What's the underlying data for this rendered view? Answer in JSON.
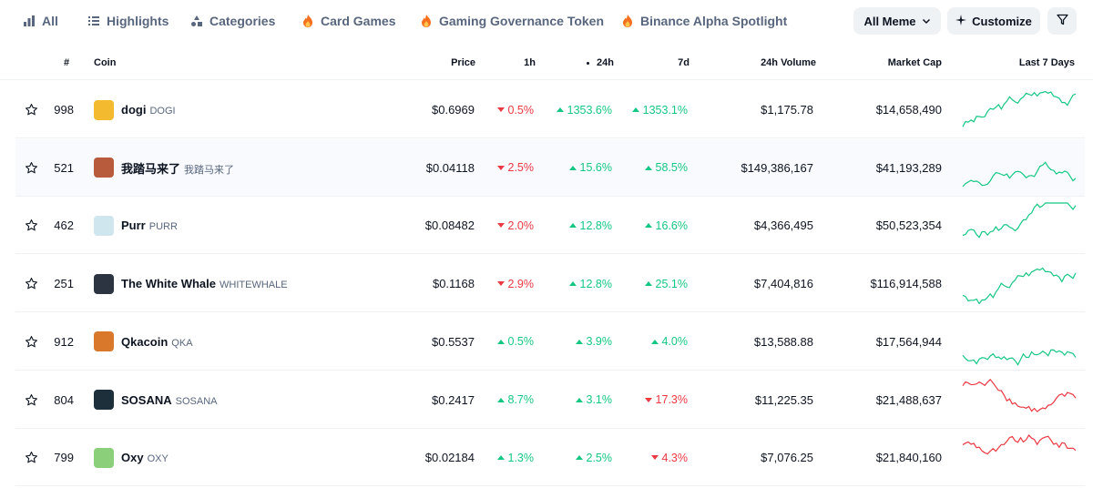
{
  "nav": {
    "items": [
      {
        "label": "All",
        "icon": "bar-chart-icon"
      },
      {
        "label": "Highlights",
        "icon": "list-icon"
      },
      {
        "label": "Categories",
        "icon": "categories-icon"
      },
      {
        "label": "Card Games",
        "icon": "fire-icon"
      },
      {
        "label": "Gaming Governance Token",
        "icon": "fire-icon"
      },
      {
        "label": "Binance Alpha Spotlight",
        "icon": "fire-icon"
      }
    ],
    "all_meme_label": "All Meme",
    "customize_label": "Customize"
  },
  "table": {
    "headers": {
      "rank": "#",
      "coin": "Coin",
      "price": "Price",
      "h1": "1h",
      "h24": "24h",
      "d7": "7d",
      "volume": "24h Volume",
      "market_cap": "Market Cap",
      "spark": "Last 7 Days"
    },
    "rows": [
      {
        "rank": "998",
        "name": "dogi",
        "symbol": "DOGI",
        "price": "$0.6969",
        "h1": "0.5%",
        "h1_dir": "down",
        "h24": "1353.6%",
        "h24_dir": "up",
        "d7": "1353.1%",
        "d7_dir": "up",
        "volume": "$1,175.78",
        "market_cap": "$14,658,490",
        "spark_dir": "up",
        "logo_color": "#f3ba2f"
      },
      {
        "rank": "521",
        "name": "我踏马来了",
        "symbol": "我踏马来了",
        "price": "$0.04118",
        "h1": "2.5%",
        "h1_dir": "down",
        "h24": "15.6%",
        "h24_dir": "up",
        "d7": "58.5%",
        "d7_dir": "up",
        "volume": "$149,386,167",
        "market_cap": "$41,193,289",
        "spark_dir": "up",
        "logo_color": "#b85a3c"
      },
      {
        "rank": "462",
        "name": "Purr",
        "symbol": "PURR",
        "price": "$0.08482",
        "h1": "2.0%",
        "h1_dir": "down",
        "h24": "12.8%",
        "h24_dir": "up",
        "d7": "16.6%",
        "d7_dir": "up",
        "volume": "$4,366,495",
        "market_cap": "$50,523,354",
        "spark_dir": "up",
        "logo_color": "#cfe6ef"
      },
      {
        "rank": "251",
        "name": "The White Whale",
        "symbol": "WHITEWHALE",
        "price": "$0.1168",
        "h1": "2.9%",
        "h1_dir": "down",
        "h24": "12.8%",
        "h24_dir": "up",
        "d7": "25.1%",
        "d7_dir": "up",
        "volume": "$7,404,816",
        "market_cap": "$116,914,588",
        "spark_dir": "up",
        "logo_color": "#2b3440"
      },
      {
        "rank": "912",
        "name": "Qkacoin",
        "symbol": "QKA",
        "price": "$0.5537",
        "h1": "0.5%",
        "h1_dir": "up",
        "h24": "3.9%",
        "h24_dir": "up",
        "d7": "4.0%",
        "d7_dir": "up",
        "volume": "$13,588.88",
        "market_cap": "$17,564,944",
        "spark_dir": "up",
        "logo_color": "#d9772b"
      },
      {
        "rank": "804",
        "name": "SOSANA",
        "symbol": "SOSANA",
        "price": "$0.2417",
        "h1": "8.7%",
        "h1_dir": "up",
        "h24": "3.1%",
        "h24_dir": "up",
        "d7": "17.3%",
        "d7_dir": "down",
        "volume": "$11,225.35",
        "market_cap": "$21,488,637",
        "spark_dir": "down",
        "logo_color": "#1d2f3a"
      },
      {
        "rank": "799",
        "name": "Oxy",
        "symbol": "OXY",
        "price": "$0.02184",
        "h1": "1.3%",
        "h1_dir": "up",
        "h24": "2.5%",
        "h24_dir": "up",
        "d7": "4.3%",
        "d7_dir": "down",
        "volume": "$7,076.25",
        "market_cap": "$21,840,160",
        "spark_dir": "down",
        "logo_color": "#8ccf7a"
      }
    ]
  },
  "colors": {
    "up": "#16c784",
    "down": "#ea3943",
    "text": "#0d1421",
    "muted": "#58667e",
    "button_bg": "#eff2f5"
  }
}
